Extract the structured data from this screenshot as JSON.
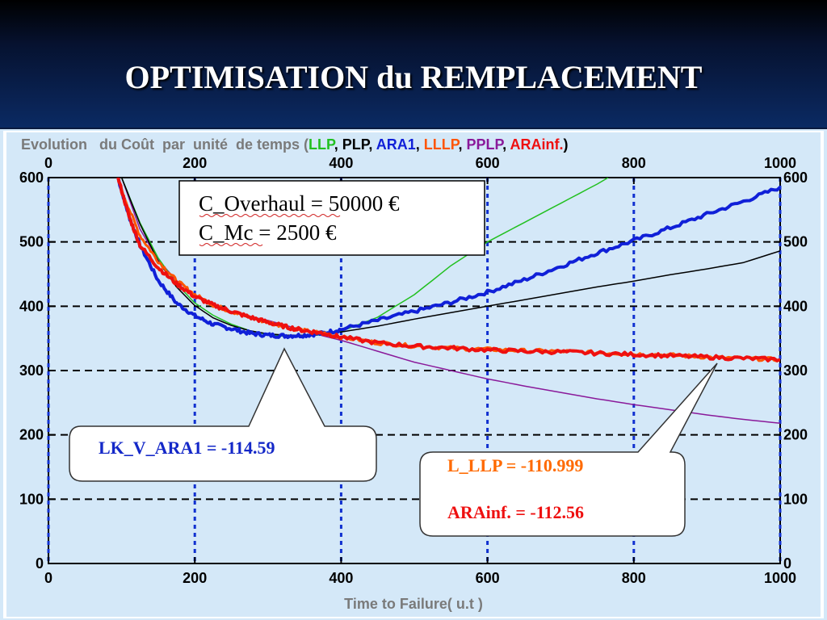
{
  "slide": {
    "title": "OPTIMISATION du REMPLACEMENT"
  },
  "chart_data": {
    "type": "line",
    "title_prefix": "Evolution   du Coût  par  unité  de temps (",
    "title_suffix": ")",
    "legend": [
      {
        "name": "LLP",
        "color": "#22c020"
      },
      {
        "name": "PLP",
        "color": "#000000"
      },
      {
        "name": "ARA1",
        "color": "#1020d8"
      },
      {
        "name": "LLLP",
        "color": "#ff5500"
      },
      {
        "name": "PPLP",
        "color": "#8a1a9a"
      },
      {
        "name": "ARAinf.",
        "color": "#ee1010"
      }
    ],
    "xlabel": "Time to Failure( u.t )",
    "ylabel": "",
    "xlim": [
      0,
      1000
    ],
    "ylim": [
      0,
      600
    ],
    "xticks": [
      "0",
      "200",
      "400",
      "600",
      "800",
      "1000"
    ],
    "yticks": [
      "0",
      "100",
      "200",
      "300",
      "400",
      "500",
      "600"
    ],
    "background": "#d4e8f8",
    "grid": "dashed",
    "blue_gridlines_x": [
      0,
      200,
      400,
      600,
      800,
      1000
    ],
    "series": [
      {
        "name": "LLP",
        "color": "#22c020",
        "x": [
          100,
          125,
          150,
          175,
          200,
          225,
          250,
          275,
          300,
          325,
          350,
          375,
          400,
          450,
          500,
          550,
          600,
          650,
          700,
          750,
          765
        ],
        "y": [
          600,
          530,
          475,
          435,
          405,
          386,
          372,
          362,
          356,
          353,
          353,
          356,
          361,
          383,
          418,
          463,
          500,
          530,
          560,
          590,
          600
        ]
      },
      {
        "name": "PLP",
        "color": "#000000",
        "x": [
          100,
          125,
          150,
          175,
          200,
          225,
          250,
          275,
          300,
          325,
          350,
          375,
          400,
          450,
          500,
          550,
          600,
          650,
          700,
          750,
          800,
          850,
          900,
          950,
          1000
        ],
        "y": [
          600,
          528,
          470,
          430,
          401,
          382,
          370,
          362,
          357,
          355,
          355,
          357,
          360,
          369,
          380,
          390,
          400,
          410,
          420,
          430,
          439,
          449,
          458,
          468,
          486
        ]
      },
      {
        "name": "ARA1",
        "color": "#1020d8",
        "x": [
          95,
          110,
          125,
          150,
          175,
          200,
          225,
          250,
          275,
          300,
          325,
          350,
          375,
          400,
          450,
          500,
          550,
          600,
          650,
          700,
          750,
          800,
          850,
          900,
          950,
          1000
        ],
        "y": [
          600,
          540,
          495,
          440,
          405,
          385,
          372,
          365,
          358,
          355,
          354,
          355,
          358,
          364,
          378,
          392,
          406,
          422,
          441,
          462,
          483,
          502,
          522,
          543,
          563,
          585
        ]
      },
      {
        "name": "LLLP",
        "color": "#ff5500",
        "x": [
          100,
          125,
          150,
          175,
          200,
          225,
          250,
          275,
          300,
          325,
          350,
          375,
          400,
          450,
          500,
          550,
          600,
          650,
          700,
          750,
          800,
          850,
          900,
          950,
          1000
        ],
        "y": [
          580,
          510,
          470,
          440,
          418,
          402,
          392,
          383,
          375,
          368,
          362,
          358,
          352,
          343,
          338,
          335,
          333,
          331,
          330,
          328,
          326,
          324,
          321,
          319,
          317
        ]
      },
      {
        "name": "PPLP",
        "color": "#8a1a9a",
        "x": [
          100,
          125,
          150,
          175,
          200,
          225,
          250,
          275,
          300,
          325,
          350,
          375,
          400,
          450,
          500,
          550,
          600,
          650,
          700,
          750,
          800,
          850,
          900,
          950,
          1000
        ],
        "y": [
          600,
          520,
          472,
          440,
          418,
          402,
          392,
          384,
          378,
          370,
          362,
          354,
          347,
          330,
          313,
          300,
          287,
          276,
          266,
          256,
          247,
          239,
          231,
          224,
          218
        ]
      },
      {
        "name": "ARAinf.",
        "color": "#ee1010",
        "x": [
          95,
          110,
          125,
          150,
          175,
          200,
          225,
          250,
          275,
          300,
          325,
          350,
          375,
          400,
          450,
          500,
          550,
          600,
          650,
          700,
          750,
          800,
          850,
          900,
          950,
          1000
        ],
        "y": [
          600,
          540,
          495,
          460,
          435,
          415,
          402,
          392,
          383,
          375,
          368,
          362,
          358,
          352,
          343,
          338,
          335,
          332,
          330,
          329,
          327,
          325,
          323,
          321,
          319,
          317
        ]
      }
    ],
    "annotations": {
      "cost_box": {
        "line1": "C_Overhaul = 50000 €",
        "line2": "C_Mc = 2500 €"
      },
      "callout_ara1": {
        "text": "LK_V_ARA1 = -114.59"
      },
      "callout_llp": {
        "text1": "L_LLP  = -110.999",
        "text2": "ARAinf. = -112.56",
        "color1": "#ff6a00",
        "color2": "#ee1010"
      }
    }
  }
}
